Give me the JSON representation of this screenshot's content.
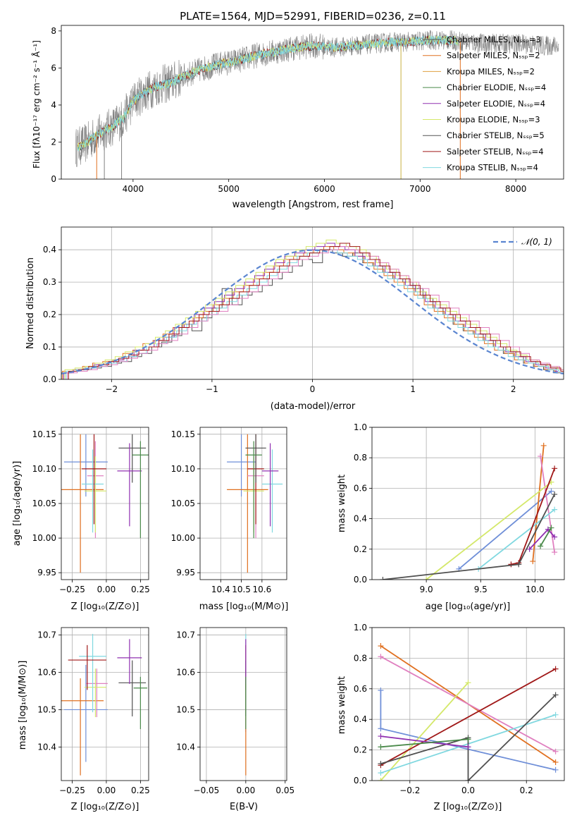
{
  "figure_title": "PLATE=1564, MJD=52991, FIBERID=0236, z=0.11",
  "labels": {
    "flux_ylabel": "Flux [fλ10⁻¹⁷ erg cm⁻² s⁻¹ Å⁻¹]",
    "wave_xlabel": "wavelength [Angstrom, rest frame]",
    "hist_ylabel": "Normed distribution",
    "hist_xlabel": "(data-model)/error",
    "age_ylabel": "age  [log₁₀(age/yr)]",
    "z_xlabel": "Z [log₁₀(Z/Z⊙)]",
    "mass_xlabel": "mass [log₁₀(M/M⊙)]",
    "mw_ylabel": "mass weight",
    "age_xlabel": "age  [log₁₀(age/yr)]",
    "mass_ylabel": "mass [log₁₀(M/M⊙)]",
    "ebv_xlabel": "E(B-V)"
  },
  "chart_data": [
    {
      "id": "spectrum",
      "type": "line",
      "xlim": [
        3250,
        8500
      ],
      "ylim": [
        0,
        8.3
      ],
      "xticks": [
        4000,
        5000,
        6000,
        7000,
        8000
      ],
      "yticks": [
        0,
        2,
        4,
        6,
        8
      ],
      "grid": false,
      "legend_position": "top-right",
      "continuum": {
        "x": [
          3400,
          3500,
          3600,
          3700,
          3800,
          3900,
          4000,
          4100,
          4200,
          4300,
          4400,
          4500,
          4700,
          4900,
          5100,
          5300,
          5500,
          5700,
          5900,
          6100,
          6300,
          6500,
          6700,
          6900,
          7100,
          7300,
          7500,
          7700,
          7900,
          8100,
          8300,
          8450
        ],
        "y": [
          1.7,
          1.9,
          2.3,
          2.6,
          2.9,
          3.3,
          4.2,
          4.6,
          4.9,
          5.1,
          5.2,
          5.5,
          5.9,
          6.2,
          6.4,
          6.7,
          6.9,
          7.1,
          7.2,
          7.1,
          7.2,
          7.3,
          7.4,
          7.4,
          7.5,
          7.5,
          7.4,
          7.3,
          7.3,
          7.3,
          7.2,
          7.2
        ]
      },
      "data_xrange": [
        3400,
        7400
      ],
      "legend": [
        "Chabrier MILES, N_SSP=3",
        "Salpeter MILES, N_SSP=2",
        "Kroupa MILES, N_SSP=2",
        "Chabrier ELODIE, N_SSP=4",
        "Salpeter ELODIE, N_SSP=4",
        "Kroupa ELODIE, N_SSP=3",
        "Chabrier STELIB, N_SSP=5",
        "Salpeter STELIB, N_SSP=4",
        "Kroupa STELIB, N_SSP=4"
      ]
    },
    {
      "id": "residual-histogram",
      "type": "line",
      "xlim": [
        -2.5,
        2.5
      ],
      "ylim": [
        0,
        0.47
      ],
      "xticks": [
        -2,
        -1,
        0,
        1,
        2
      ],
      "yticks": [
        0.0,
        0.1,
        0.2,
        0.3,
        0.4
      ],
      "grid": true,
      "legend_position": "top-right",
      "legend_label": "𝒩(0, 1)",
      "gaussian": {
        "mu": 0,
        "sigma": 1
      },
      "bin_width": 0.1,
      "bins_start": -2.5,
      "series_values": [
        [
          0.02,
          0.025,
          0.03,
          0.035,
          0.04,
          0.05,
          0.055,
          0.07,
          0.08,
          0.1,
          0.115,
          0.135,
          0.17,
          0.15,
          0.19,
          0.22,
          0.28,
          0.23,
          0.26,
          0.27,
          0.29,
          0.31,
          0.33,
          0.35,
          0.37,
          0.36,
          0.4,
          0.39,
          0.38,
          0.39,
          0.36,
          0.35,
          0.33,
          0.31,
          0.3,
          0.28,
          0.25,
          0.22,
          0.2,
          0.17,
          0.15,
          0.14,
          0.12,
          0.1,
          0.08,
          0.07,
          0.05,
          0.04,
          0.03,
          0.02
        ],
        [
          0.025,
          0.03,
          0.04,
          0.05,
          0.055,
          0.06,
          0.08,
          0.09,
          0.11,
          0.12,
          0.14,
          0.16,
          0.17,
          0.19,
          0.21,
          0.23,
          0.25,
          0.27,
          0.29,
          0.31,
          0.33,
          0.35,
          0.37,
          0.38,
          0.39,
          0.4,
          0.41,
          0.4,
          0.39,
          0.38,
          0.36,
          0.34,
          0.32,
          0.3,
          0.28,
          0.26,
          0.23,
          0.21,
          0.19,
          0.17,
          0.15,
          0.13,
          0.11,
          0.09,
          0.08,
          0.06,
          0.05,
          0.04,
          0.03,
          0.025
        ],
        [
          0.02,
          0.03,
          0.035,
          0.045,
          0.05,
          0.06,
          0.07,
          0.09,
          0.1,
          0.12,
          0.13,
          0.16,
          0.17,
          0.2,
          0.22,
          0.24,
          0.26,
          0.28,
          0.3,
          0.32,
          0.34,
          0.36,
          0.38,
          0.39,
          0.4,
          0.41,
          0.42,
          0.41,
          0.4,
          0.38,
          0.37,
          0.35,
          0.33,
          0.31,
          0.29,
          0.27,
          0.24,
          0.22,
          0.2,
          0.18,
          0.16,
          0.14,
          0.12,
          0.1,
          0.085,
          0.07,
          0.055,
          0.045,
          0.035,
          0.025
        ],
        [
          0.03,
          0.035,
          0.04,
          0.05,
          0.06,
          0.07,
          0.085,
          0.1,
          0.11,
          0.13,
          0.15,
          0.17,
          0.19,
          0.21,
          0.23,
          0.25,
          0.27,
          0.29,
          0.31,
          0.33,
          0.35,
          0.37,
          0.38,
          0.4,
          0.41,
          0.42,
          0.43,
          0.42,
          0.41,
          0.4,
          0.38,
          0.36,
          0.34,
          0.32,
          0.3,
          0.27,
          0.25,
          0.23,
          0.21,
          0.19,
          0.17,
          0.15,
          0.13,
          0.11,
          0.09,
          0.075,
          0.06,
          0.05,
          0.04,
          0.03
        ],
        [
          0.025,
          0.03,
          0.035,
          0.04,
          0.05,
          0.055,
          0.07,
          0.08,
          0.1,
          0.11,
          0.13,
          0.15,
          0.17,
          0.18,
          0.2,
          0.22,
          0.24,
          0.26,
          0.28,
          0.3,
          0.32,
          0.34,
          0.36,
          0.38,
          0.39,
          0.4,
          0.4,
          0.39,
          0.38,
          0.37,
          0.35,
          0.33,
          0.31,
          0.29,
          0.27,
          0.25,
          0.22,
          0.2,
          0.18,
          0.16,
          0.14,
          0.12,
          0.1,
          0.09,
          0.07,
          0.06,
          0.05,
          0.04,
          0.03,
          0.025
        ],
        [
          0.02,
          0.025,
          0.03,
          0.04,
          0.045,
          0.055,
          0.065,
          0.08,
          0.09,
          0.11,
          0.12,
          0.14,
          0.16,
          0.18,
          0.2,
          0.21,
          0.23,
          0.25,
          0.27,
          0.29,
          0.31,
          0.33,
          0.35,
          0.37,
          0.38,
          0.39,
          0.4,
          0.41,
          0.4,
          0.39,
          0.38,
          0.36,
          0.34,
          0.32,
          0.3,
          0.28,
          0.26,
          0.24,
          0.22,
          0.2,
          0.18,
          0.16,
          0.14,
          0.12,
          0.1,
          0.08,
          0.06,
          0.05,
          0.04,
          0.03
        ],
        [
          0.025,
          0.03,
          0.04,
          0.045,
          0.055,
          0.065,
          0.075,
          0.09,
          0.1,
          0.12,
          0.14,
          0.16,
          0.18,
          0.2,
          0.21,
          0.23,
          0.25,
          0.27,
          0.29,
          0.31,
          0.33,
          0.35,
          0.37,
          0.38,
          0.39,
          0.4,
          0.41,
          0.42,
          0.41,
          0.39,
          0.37,
          0.35,
          0.33,
          0.31,
          0.29,
          0.26,
          0.24,
          0.22,
          0.2,
          0.18,
          0.16,
          0.14,
          0.12,
          0.1,
          0.085,
          0.07,
          0.055,
          0.045,
          0.035,
          0.025
        ]
      ]
    },
    {
      "id": "age-vs-z",
      "type": "scatter",
      "xlim": [
        -0.33,
        0.31
      ],
      "ylim": [
        9.94,
        10.16
      ],
      "xticks": [
        -0.25,
        0.0,
        0.25
      ],
      "yticks": [
        9.95,
        10.0,
        10.05,
        10.1,
        10.15
      ],
      "grid": true,
      "points": [
        {
          "x": -0.15,
          "y": 10.11,
          "xerr": 0.16,
          "yerr": [
            0.05,
            0.04
          ]
        },
        {
          "x": -0.19,
          "y": 10.07,
          "xerr": 0.17,
          "yerr": [
            0.12,
            0.08
          ]
        },
        {
          "x": -0.08,
          "y": 10.09,
          "xerr": 0.06,
          "yerr": [
            0.09,
            0.05
          ]
        },
        {
          "x": -0.08,
          "y": 10.068,
          "xerr": 0.08,
          "yerr": [
            0.06,
            0.05
          ]
        },
        {
          "x": -0.1,
          "y": 10.078,
          "xerr": 0.08,
          "yerr": [
            0.07,
            0.05
          ]
        },
        {
          "x": -0.09,
          "y": 10.1,
          "xerr": 0.09,
          "yerr": [
            0.08,
            0.05
          ]
        },
        {
          "x": 0.19,
          "y": 10.13,
          "xerr": 0.1,
          "yerr": [
            0.05,
            0.02
          ]
        },
        {
          "x": 0.17,
          "y": 10.097,
          "xerr": 0.09,
          "yerr": [
            0.08,
            0.04
          ]
        },
        {
          "x": 0.25,
          "y": 10.12,
          "xerr": 0.06,
          "yerr": [
            0.12,
            0.02
          ]
        }
      ]
    },
    {
      "id": "age-vs-mass",
      "type": "scatter",
      "xlim": [
        10.3,
        10.72
      ],
      "ylim": [
        9.94,
        10.16
      ],
      "xticks": [
        10.4,
        10.5,
        10.6
      ],
      "yticks": [
        9.95,
        10.0,
        10.05,
        10.1,
        10.15
      ],
      "grid": true,
      "points": [
        {
          "x": 10.5,
          "y": 10.11,
          "xerr": 0.07,
          "yerr": [
            0.05,
            0.04
          ]
        },
        {
          "x": 10.53,
          "y": 10.07,
          "xerr": 0.1,
          "yerr": [
            0.12,
            0.08
          ]
        },
        {
          "x": 10.57,
          "y": 10.09,
          "xerr": 0.04,
          "yerr": [
            0.09,
            0.05
          ]
        },
        {
          "x": 10.56,
          "y": 10.068,
          "xerr": 0.05,
          "yerr": [
            0.06,
            0.05
          ]
        },
        {
          "x": 10.65,
          "y": 10.078,
          "xerr": 0.05,
          "yerr": [
            0.07,
            0.05
          ]
        },
        {
          "x": 10.57,
          "y": 10.1,
          "xerr": 0.04,
          "yerr": [
            0.08,
            0.05
          ]
        },
        {
          "x": 10.57,
          "y": 10.13,
          "xerr": 0.05,
          "yerr": [
            0.05,
            0.02
          ]
        },
        {
          "x": 10.64,
          "y": 10.097,
          "xerr": 0.04,
          "yerr": [
            0.08,
            0.04
          ]
        },
        {
          "x": 10.56,
          "y": 10.12,
          "xerr": 0.04,
          "yerr": [
            0.12,
            0.02
          ]
        }
      ]
    },
    {
      "id": "massweight-vs-age",
      "type": "line",
      "xlim": [
        8.5,
        10.27
      ],
      "ylim": [
        0,
        1
      ],
      "xticks": [
        9.0,
        9.5,
        10.0
      ],
      "yticks": [
        0.0,
        0.2,
        0.4,
        0.6,
        0.8,
        1.0
      ],
      "grid": true,
      "series": [
        {
          "x": [
            9.3,
            10.15
          ],
          "y": [
            0.07,
            0.58
          ]
        },
        {
          "x": [
            9.98,
            10.08
          ],
          "y": [
            0.12,
            0.88
          ]
        },
        {
          "x": [
            10.05,
            10.18
          ],
          "y": [
            0.81,
            0.18
          ]
        },
        {
          "x": [
            9.0,
            10.15
          ],
          "y": [
            0.0,
            0.64
          ]
        },
        {
          "x": [
            9.48,
            10.18
          ],
          "y": [
            0.07,
            0.46
          ]
        },
        {
          "x": [
            9.78,
            9.85,
            10.18
          ],
          "y": [
            0.1,
            0.11,
            0.73
          ]
        },
        {
          "x": [
            8.6,
            9.85,
            10.18
          ],
          "y": [
            0.0,
            0.1,
            0.56
          ]
        },
        {
          "x": [
            9.95,
            10.12,
            10.18
          ],
          "y": [
            0.2,
            0.33,
            0.28
          ]
        },
        {
          "x": [
            10.05,
            10.15
          ],
          "y": [
            0.22,
            0.34
          ]
        }
      ]
    },
    {
      "id": "mass-vs-z",
      "type": "scatter",
      "xlim": [
        -0.33,
        0.31
      ],
      "ylim": [
        10.31,
        10.72
      ],
      "xticks": [
        -0.25,
        0.0,
        0.25
      ],
      "yticks": [
        10.4,
        10.5,
        10.6,
        10.7
      ],
      "grid": true,
      "points": [
        {
          "x": -0.15,
          "y": 10.5,
          "xerr": 0.16,
          "yerr": [
            0.14,
            0.12
          ]
        },
        {
          "x": -0.19,
          "y": 10.524,
          "xerr": 0.17,
          "yerr": [
            0.2,
            0.06
          ]
        },
        {
          "x": -0.07,
          "y": 10.57,
          "xerr": 0.08,
          "yerr": [
            0.09,
            0.04
          ]
        },
        {
          "x": -0.08,
          "y": 10.56,
          "xerr": 0.08,
          "yerr": [
            0.08,
            0.05
          ]
        },
        {
          "x": -0.1,
          "y": 10.643,
          "xerr": 0.1,
          "yerr": [
            0.15,
            0.06
          ]
        },
        {
          "x": -0.14,
          "y": 10.633,
          "xerr": 0.14,
          "yerr": [
            0.08,
            0.04
          ]
        },
        {
          "x": 0.19,
          "y": 10.572,
          "xerr": 0.1,
          "yerr": [
            0.09,
            0.06
          ]
        },
        {
          "x": 0.17,
          "y": 10.639,
          "xerr": 0.09,
          "yerr": [
            0.07,
            0.05
          ]
        },
        {
          "x": 0.25,
          "y": 10.558,
          "xerr": 0.05,
          "yerr": [
            0.11,
            0.03
          ]
        }
      ]
    },
    {
      "id": "mass-vs-ebv",
      "type": "scatter",
      "xlim": [
        -0.058,
        0.052
      ],
      "ylim": [
        10.31,
        10.72
      ],
      "xticks": [
        -0.05,
        0.0,
        0.05
      ],
      "yticks": [
        10.4,
        10.5,
        10.6,
        10.7
      ],
      "grid": true,
      "points": [
        {
          "x": 0.0,
          "y": 10.5,
          "yerr": [
            0.06,
            0.05
          ]
        },
        {
          "x": 0.0,
          "y": 10.524,
          "yerr": [
            0.2,
            0.06
          ]
        },
        {
          "x": 0.0,
          "y": 10.57,
          "yerr": [
            0.09,
            0.04
          ]
        },
        {
          "x": 0.0,
          "y": 10.56,
          "yerr": [
            0.08,
            0.05
          ]
        },
        {
          "x": 0.0,
          "y": 10.643,
          "yerr": [
            0.05,
            0.06
          ]
        },
        {
          "x": 0.0,
          "y": 10.633,
          "yerr": [
            0.08,
            0.04
          ]
        },
        {
          "x": 0.0,
          "y": 10.572,
          "yerr": [
            0.09,
            0.06
          ]
        },
        {
          "x": 0.0,
          "y": 10.639,
          "yerr": [
            0.07,
            0.05
          ]
        },
        {
          "x": 0.0,
          "y": 10.558,
          "yerr": [
            0.11,
            0.03
          ]
        }
      ]
    },
    {
      "id": "massweight-vs-z",
      "type": "line",
      "xlim": [
        -0.33,
        0.33
      ],
      "ylim": [
        0,
        1
      ],
      "xticks": [
        -0.2,
        0.0,
        0.2
      ],
      "yticks": [
        0.0,
        0.2,
        0.4,
        0.6,
        0.8,
        1.0
      ],
      "grid": true,
      "series": [
        {
          "x": [
            -0.3,
            -0.3,
            0.3
          ],
          "y": [
            0.59,
            0.34,
            0.07
          ]
        },
        {
          "x": [
            -0.3,
            0.3
          ],
          "y": [
            0.88,
            0.12
          ]
        },
        {
          "x": [
            -0.3,
            0.3
          ],
          "y": [
            0.81,
            0.19
          ]
        },
        {
          "x": [
            -0.3,
            0.0
          ],
          "y": [
            0.0,
            0.64
          ]
        },
        {
          "x": [
            -0.3,
            0.3
          ],
          "y": [
            0.05,
            0.43
          ]
        },
        {
          "x": [
            -0.3,
            0.3
          ],
          "y": [
            0.1,
            0.73
          ]
        },
        {
          "x": [
            -0.3,
            0.0,
            0.0,
            0.3
          ],
          "y": [
            0.11,
            0.28,
            0.0,
            0.56
          ]
        },
        {
          "x": [
            -0.3,
            0.0
          ],
          "y": [
            0.29,
            0.22
          ]
        },
        {
          "x": [
            -0.3,
            0.0
          ],
          "y": [
            0.22,
            0.27
          ]
        }
      ]
    }
  ],
  "colors": [
    "#6f8fd8",
    "#e07020",
    "#e080c0",
    "#d4e86a",
    "#80d8e0",
    "#a01818",
    "#505050",
    "#9030b0",
    "#4a8a4a"
  ],
  "legend_colors": [
    "#555555",
    "#e07020",
    "#e0a040",
    "#4a8a4a",
    "#9030b0",
    "#d4e86a",
    "#555555",
    "#a01818",
    "#80d8e0"
  ]
}
